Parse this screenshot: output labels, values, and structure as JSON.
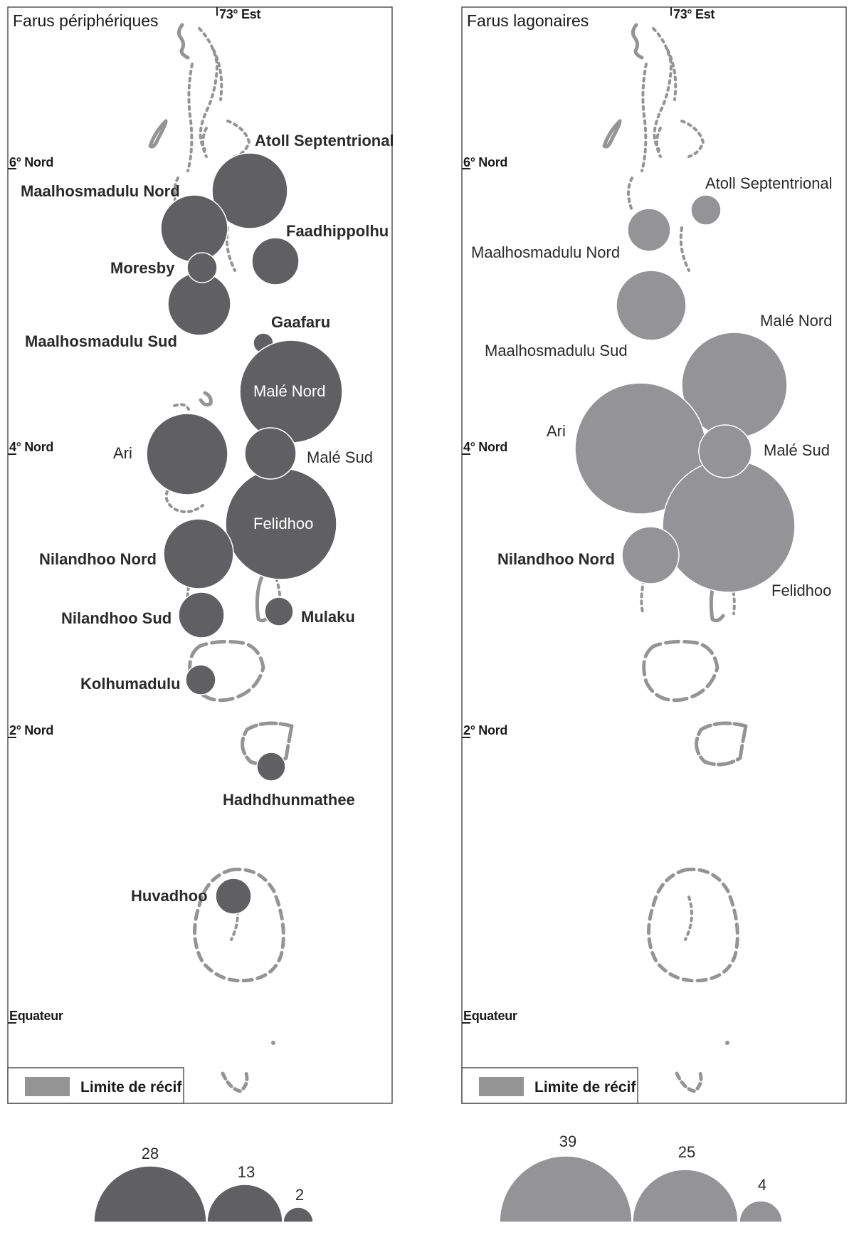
{
  "panels": [
    {
      "title": "Farus périphériques",
      "meridian_label": "73° Est",
      "lat_labels": [
        "6° Nord",
        "4° Nord",
        "2° Nord",
        "Equateur"
      ],
      "legend_label": "Limite de récif",
      "circle_color": "#606062",
      "atolls": [
        {
          "name": "Atoll Septentrional",
          "value": 28
        },
        {
          "name": "Maalhosmadulu Nord",
          "value": 22
        },
        {
          "name": "Faadhippolhu",
          "value": 11
        },
        {
          "name": "Moresby",
          "value": 4
        },
        {
          "name": "Maalhosmadulu Sud",
          "value": 20
        },
        {
          "name": "Gaafaru",
          "value": 2
        },
        {
          "name": "Malé Nord",
          "value": 39
        },
        {
          "name": "Ari",
          "value": 30
        },
        {
          "name": "Malé Sud",
          "value": 13
        },
        {
          "name": "Felidhoo",
          "value": 45
        },
        {
          "name": "Nilandhoo Nord",
          "value": 23
        },
        {
          "name": "Nilandhoo Sud",
          "value": 10
        },
        {
          "name": "Mulaku",
          "value": 4
        },
        {
          "name": "Kolhumadulu",
          "value": 4
        },
        {
          "name": "Hadhdhunmathee",
          "value": 4
        },
        {
          "name": "Huvadhoo",
          "value": 6
        }
      ],
      "size_legend": [
        28,
        13,
        2
      ]
    },
    {
      "title": "Farus lagonaires",
      "meridian_label": "73° Est",
      "lat_labels": [
        "6° Nord",
        "4° Nord",
        "2° Nord",
        "Equateur"
      ],
      "legend_label": "Limite de récif",
      "circle_color": "#949496",
      "atolls": [
        {
          "name": "Atoll Septentrional",
          "value": 4
        },
        {
          "name": "Maalhosmadulu Nord",
          "value": 9
        },
        {
          "name": "Maalhosmadulu Sud",
          "value": 25
        },
        {
          "name": "Malé Nord",
          "value": 57
        },
        {
          "name": "Ari",
          "value": 85
        },
        {
          "name": "Malé Sud",
          "value": 13
        },
        {
          "name": "Felidhoo",
          "value": 89
        },
        {
          "name": "Nilandhoo Nord",
          "value": 16
        }
      ],
      "size_legend": [
        39,
        25,
        4
      ]
    }
  ]
}
